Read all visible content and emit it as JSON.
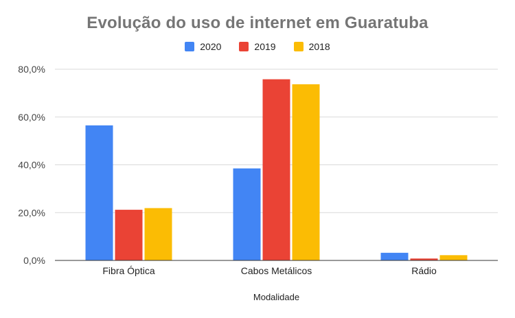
{
  "chart_data": {
    "type": "bar",
    "title": "Evolução do uso de internet em Guaratuba",
    "xlabel": "Modalidade",
    "ylabel": "",
    "categories": [
      "Fibra Óptica",
      "Cabos Metálicos",
      "Rádio"
    ],
    "series": [
      {
        "name": "2020",
        "color": "#4285f4",
        "values": [
          56.5,
          38.5,
          3.2
        ]
      },
      {
        "name": "2019",
        "color": "#ea4335",
        "values": [
          21.2,
          75.8,
          0.8
        ]
      },
      {
        "name": "2018",
        "color": "#fbbc04",
        "values": [
          21.9,
          73.7,
          2.2
        ]
      }
    ],
    "ylim": [
      0,
      80
    ],
    "yticks": [
      "0,0%",
      "20,0%",
      "40,0%",
      "60,0%",
      "80,0%"
    ],
    "grid": true,
    "legend_position": "top-center"
  }
}
